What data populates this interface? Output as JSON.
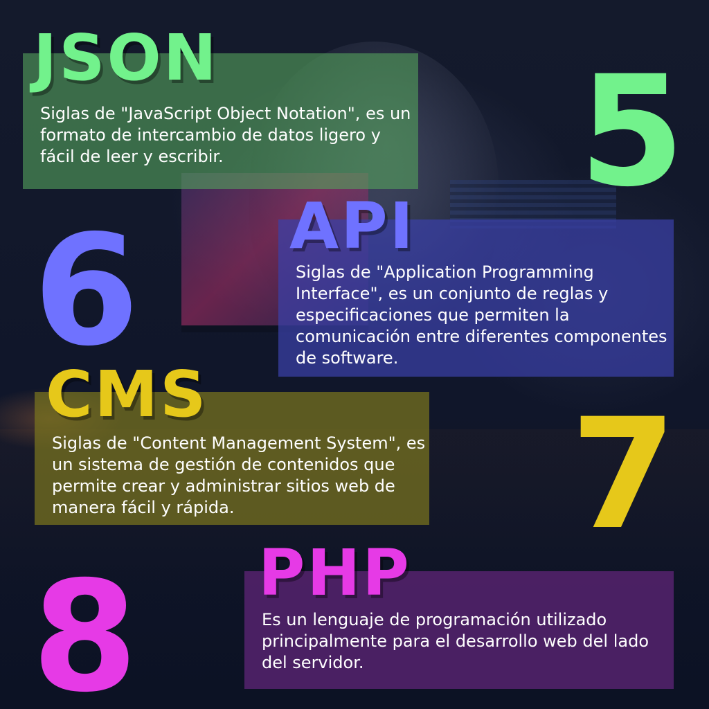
{
  "items": [
    {
      "number": "5",
      "title": "JSON",
      "description": "Siglas de \"JavaScript Object Notation\", es un formato de intercambio de datos ligero y fácil de leer y escribir.",
      "color": "#72f28c"
    },
    {
      "number": "6",
      "title": "API",
      "description": "Siglas de \"Application Programming Interface\", es un conjunto de reglas y especificaciones que permiten la comunicación entre diferentes componentes de software.",
      "color": "#6f72ff"
    },
    {
      "number": "7",
      "title": "CMS",
      "description": "Siglas de \"Content Management System\", es un sistema de gestión de contenidos que permite crear y administrar sitios web de manera fácil y rápida.",
      "color": "#e6c81a"
    },
    {
      "number": "8",
      "title": "PHP",
      "description": "Es un lenguaje de programación utilizado principalmente para el desarrollo web del lado del servidor.",
      "color": "#e63ae6"
    }
  ]
}
